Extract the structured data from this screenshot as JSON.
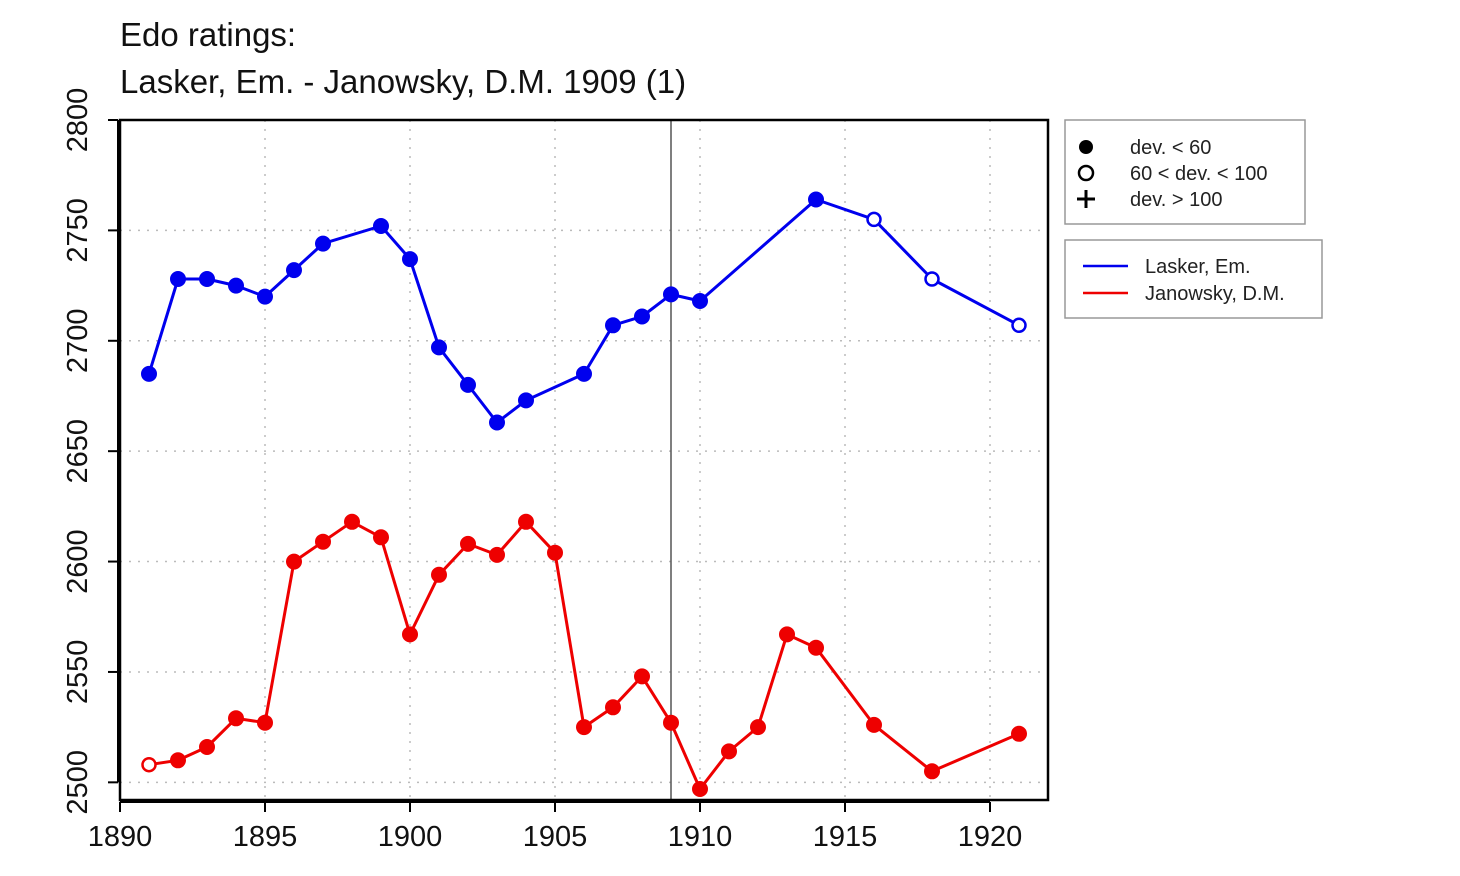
{
  "chart_data": {
    "type": "line",
    "title_lines": [
      "Edo ratings:",
      "Lasker, Em. - Janowsky, D.M. 1909 (1)"
    ],
    "xlabel": "",
    "ylabel": "",
    "xlim": [
      1890,
      1922
    ],
    "ylim": [
      2492,
      2800
    ],
    "x_ticks": [
      1890,
      1895,
      1900,
      1905,
      1910,
      1915,
      1920
    ],
    "y_ticks": [
      2500,
      2550,
      2600,
      2650,
      2700,
      2750,
      2800
    ],
    "grid": true,
    "reference_line_x": 1909,
    "symbol_legend": {
      "placement": "top-right, outside plot",
      "entries": [
        {
          "symbol": "filled-circle",
          "label": "dev. < 60"
        },
        {
          "symbol": "open-circle",
          "label": "60 < dev. < 100"
        },
        {
          "symbol": "plus",
          "label": "dev. > 100"
        }
      ]
    },
    "series_legend": {
      "placement": "right, outside plot",
      "entries": [
        "Lasker, Em.",
        "Janowsky, D.M."
      ]
    },
    "series": [
      {
        "name": "Lasker, Em.",
        "color": "#0000ee",
        "x": [
          1891,
          1892,
          1893,
          1894,
          1895,
          1896,
          1897,
          1899,
          1900,
          1901,
          1902,
          1903,
          1904,
          1906,
          1907,
          1908,
          1909,
          1910,
          1914,
          1916,
          1918,
          1921
        ],
        "y": [
          2685,
          2728,
          2728,
          2725,
          2720,
          2732,
          2744,
          2752,
          2737,
          2697,
          2680,
          2663,
          2673,
          2685,
          2707,
          2711,
          2721,
          2718,
          2764,
          2755,
          2728,
          2707
        ],
        "markers": [
          "filled",
          "filled",
          "filled",
          "filled",
          "filled",
          "filled",
          "filled",
          "filled",
          "filled",
          "filled",
          "filled",
          "filled",
          "filled",
          "filled",
          "filled",
          "filled",
          "filled",
          "filled",
          "filled",
          "open",
          "open",
          "open"
        ]
      },
      {
        "name": "Janowsky, D.M.",
        "color": "#ee0000",
        "x": [
          1891,
          1892,
          1893,
          1894,
          1895,
          1896,
          1897,
          1898,
          1899,
          1900,
          1901,
          1902,
          1903,
          1904,
          1905,
          1906,
          1907,
          1908,
          1909,
          1910,
          1911,
          1912,
          1913,
          1914,
          1916,
          1918,
          1921
        ],
        "y": [
          2508,
          2510,
          2516,
          2529,
          2527,
          2600,
          2609,
          2618,
          2611,
          2567,
          2594,
          2608,
          2603,
          2618,
          2604,
          2525,
          2534,
          2548,
          2527,
          2497,
          2514,
          2525,
          2567,
          2561,
          2526,
          2505,
          2522
        ],
        "markers": [
          "open",
          "filled",
          "filled",
          "filled",
          "filled",
          "filled",
          "filled",
          "filled",
          "filled",
          "filled",
          "filled",
          "filled",
          "filled",
          "filled",
          "filled",
          "filled",
          "filled",
          "filled",
          "filled",
          "filled",
          "filled",
          "filled",
          "filled",
          "filled",
          "filled",
          "filled",
          "filled"
        ]
      }
    ]
  }
}
